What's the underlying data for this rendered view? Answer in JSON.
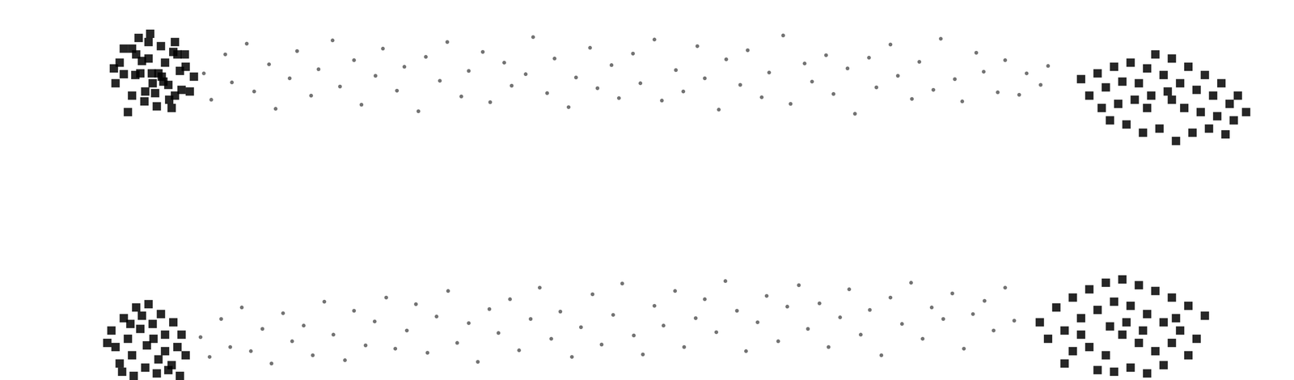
{
  "chart_data": {
    "type": "scatter",
    "grid": false,
    "tick_labels": false,
    "xlim": [
      0,
      1568
    ],
    "ylim": [
      0,
      461
    ],
    "series": [
      {
        "color": "#000000",
        "marker": "circle",
        "x": [
          247,
          256,
          273,
          281,
          299,
          308,
          326,
          334,
          351,
          360,
          377,
          386,
          403,
          412,
          429,
          438,
          455,
          464,
          481,
          490,
          507,
          516,
          533,
          542,
          559,
          568,
          585,
          594,
          611,
          620,
          637,
          646,
          663,
          672,
          689,
          698,
          715,
          724,
          741,
          750,
          767,
          776,
          793,
          802,
          819,
          828,
          845,
          854,
          871,
          880,
          897,
          906,
          923,
          932,
          949,
          958,
          975,
          984,
          1001,
          1010,
          1027,
          1036,
          1053,
          1062,
          1079,
          1088,
          1105,
          1114,
          1131,
          1140,
          1157,
          1166,
          1183,
          1192,
          1209,
          1218,
          1235,
          1244,
          1261,
          1270
        ],
        "y": [
          372,
          340,
          395,
          361,
          408,
          350,
          383,
          329,
          366,
          399,
          345,
          377,
          412,
          356,
          388,
          334,
          369,
          402,
          351,
          380,
          326,
          392,
          363,
          410,
          344,
          375,
          398,
          337,
          385,
          357,
          371,
          416,
          348,
          390,
          331,
          367,
          403,
          354,
          382,
          342,
          396,
          360,
          413,
          339,
          376,
          350,
          405,
          366,
          328,
          389,
          358,
          400,
          343,
          373,
          418,
          335,
          384,
          362,
          394,
          347,
          378,
          323,
          391,
          355,
          407,
          369,
          341,
          386,
          352,
          414,
          365,
          338,
          397,
          374,
          349,
          388,
          346,
          372,
          358,
          381
        ]
      },
      {
        "color": "#000000",
        "marker": "square",
        "x": [
          150,
          165,
          180,
          195,
          210,
          225,
          140,
          160,
          175,
          190,
          205,
          220,
          235,
          145,
          170,
          185,
          200,
          215,
          230,
          155,
          168,
          182,
          198,
          212,
          160,
          176,
          192,
          208,
          224,
          138,
          150,
          172,
          188,
          204,
          218,
          164,
          180,
          196,
          212,
          184
        ],
        "y": [
          371,
          395,
          410,
          405,
          398,
          380,
          360,
          345,
          338,
          332,
          340,
          352,
          368,
          385,
          372,
          360,
          385,
          395,
          350,
          325,
          415,
          420,
          362,
          410,
          402,
          350,
          372,
          330,
          395,
          378,
          402,
          387,
          348,
          358,
          375,
          370,
          390,
          368,
          345,
          372
        ]
      },
      {
        "color": "#000000",
        "marker": "square",
        "x": [
          1310,
          1330,
          1350,
          1370,
          1390,
          1410,
          1430,
          1450,
          1470,
          1490,
          1510,
          1320,
          1340,
          1360,
          1380,
          1400,
          1420,
          1440,
          1460,
          1480,
          1500,
          1335,
          1355,
          1375,
          1395,
          1415,
          1435,
          1455,
          1475,
          1495,
          1345,
          1365,
          1385,
          1405,
          1425,
          1445,
          1465,
          1485,
          1420,
          1390
        ],
        "y": [
          365,
          372,
          380,
          385,
          378,
          370,
          360,
          352,
          345,
          335,
          325,
          345,
          355,
          362,
          360,
          395,
          390,
          380,
          370,
          360,
          345,
          330,
          335,
          340,
          345,
          350,
          330,
          325,
          320,
          315,
          315,
          310,
          300,
          305,
          290,
          300,
          305,
          298,
          340,
          330
        ]
      },
      {
        "color": "#000000",
        "marker": "circle",
        "x": [
          243,
          254,
          268,
          279,
          293,
          304,
          318,
          329,
          343,
          354,
          368,
          379,
          393,
          404,
          418,
          429,
          443,
          454,
          468,
          479,
          493,
          504,
          518,
          529,
          543,
          554,
          568,
          579,
          593,
          604,
          618,
          629,
          643,
          654,
          668,
          679,
          693,
          704,
          718,
          729,
          743,
          754,
          768,
          779,
          793,
          804,
          818,
          829,
          843,
          854,
          868,
          879,
          893,
          904,
          918,
          929,
          943,
          954,
          968,
          979,
          993,
          1004,
          1018,
          1029,
          1043,
          1054,
          1068,
          1079,
          1093,
          1104,
          1118,
          1129,
          1143,
          1154,
          1168,
          1179,
          1193,
          1204,
          1218,
          1229
        ],
        "y": [
          52,
          28,
          74,
          40,
          88,
          35,
          62,
          20,
          81,
          47,
          66,
          30,
          95,
          55,
          24,
          84,
          42,
          71,
          100,
          38,
          60,
          92,
          33,
          77,
          108,
          45,
          69,
          22,
          86,
          57,
          98,
          36,
          74,
          112,
          50,
          83,
          28,
          64,
          104,
          43,
          79,
          117,
          54,
          31,
          90,
          66,
          108,
          40,
          75,
          98,
          58,
          120,
          84,
          35,
          70,
          102,
          47,
          89,
          115,
          62,
          93,
          40,
          76,
          110,
          55,
          85,
          30,
          100,
          68,
          118,
          50,
          88,
          74,
          105,
          38,
          80,
          96,
          60,
          112,
          72
        ]
      },
      {
        "color": "#000000",
        "marker": "square",
        "x": [
          135,
          150,
          165,
          180,
          195,
          210,
          220,
          140,
          155,
          170,
          185,
          200,
          215,
          145,
          160,
          178,
          192,
          208,
          225,
          130,
          148,
          162,
          176,
          190,
          204,
          218,
          158,
          172,
          186,
          200
        ],
        "y": [
          60,
          75,
          88,
          92,
          80,
          70,
          55,
          40,
          50,
          62,
          68,
          55,
          40,
          20,
          30,
          42,
          25,
          18,
          30,
          45,
          10,
          5,
          15,
          8,
          12,
          5,
          68,
          78,
          50,
          35
        ]
      },
      {
        "color": "#000000",
        "marker": "square",
        "x": [
          1260,
          1280,
          1300,
          1320,
          1340,
          1360,
          1380,
          1400,
          1420,
          1440,
          1460,
          1270,
          1290,
          1310,
          1330,
          1350,
          1370,
          1390,
          1410,
          1430,
          1450,
          1300,
          1320,
          1340,
          1360,
          1380,
          1400,
          1420,
          1440,
          1290,
          1330,
          1350,
          1370,
          1390,
          1410,
          1310,
          1365,
          1385,
          1345,
          1425
        ],
        "y": [
          70,
          88,
          100,
          110,
          118,
          122,
          115,
          108,
          100,
          90,
          78,
          50,
          60,
          75,
          85,
          95,
          90,
          80,
          70,
          60,
          50,
          35,
          40,
          30,
          55,
          45,
          35,
          45,
          30,
          20,
          12,
          10,
          15,
          8,
          18,
          55,
          70,
          60,
          65,
          75
        ]
      }
    ]
  }
}
